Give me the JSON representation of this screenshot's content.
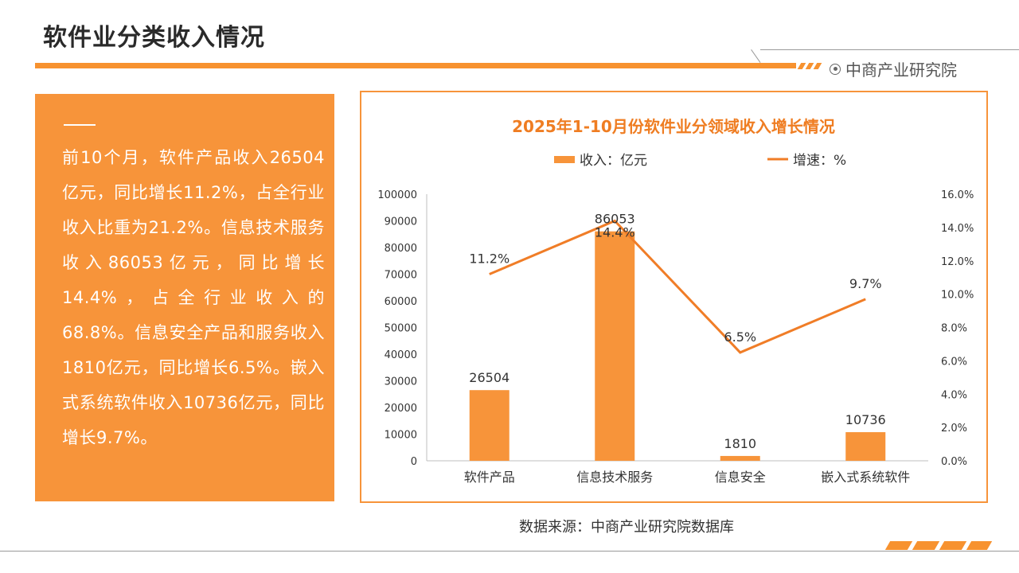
{
  "page": {
    "title": "软件业分类收入情况",
    "brand": "中商产业研究院",
    "source": "数据来源：中商产业研究院数据库"
  },
  "left_panel": {
    "text": "前10个月，软件产品收入26504亿元，同比增长11.2%，占全行业收入比重为21.2%。信息技术服务收入86053亿元，同比增长14.4%，占全行业收入的68.8%。信息安全产品和服务收入1810亿元，同比增长6.5%。嵌入式系统软件收入10736亿元，同比增长9.7%。"
  },
  "colors": {
    "accent": "#f7943a",
    "bar": "#f7943a",
    "line": "#f07d27"
  },
  "chart_data": {
    "type": "bar",
    "title": "2025年1-10月份软件业分领域收入增长情况",
    "categories": [
      "软件产品",
      "信息技术服务",
      "信息安全",
      "嵌入式系统软件"
    ],
    "series": [
      {
        "name": "收入：亿元",
        "kind": "bar",
        "axis": "left",
        "values": [
          26504,
          86053,
          1810,
          10736
        ],
        "labels": [
          "26504",
          "86053",
          "1810",
          "10736"
        ]
      },
      {
        "name": "增速：%",
        "kind": "line",
        "axis": "right",
        "values": [
          11.2,
          14.4,
          6.5,
          9.7
        ],
        "labels": [
          "11.2%",
          "14.4%",
          "6.5%",
          "9.7%"
        ]
      }
    ],
    "y_left": {
      "min": 0,
      "max": 100000,
      "ticks": [
        "0",
        "10000",
        "20000",
        "30000",
        "40000",
        "50000",
        "60000",
        "70000",
        "80000",
        "90000",
        "100000"
      ]
    },
    "y_right": {
      "min": 0,
      "max": 16,
      "ticks": [
        "0.0%",
        "2.0%",
        "4.0%",
        "6.0%",
        "8.0%",
        "10.0%",
        "12.0%",
        "14.0%",
        "16.0%"
      ]
    },
    "legend_position": "top"
  }
}
